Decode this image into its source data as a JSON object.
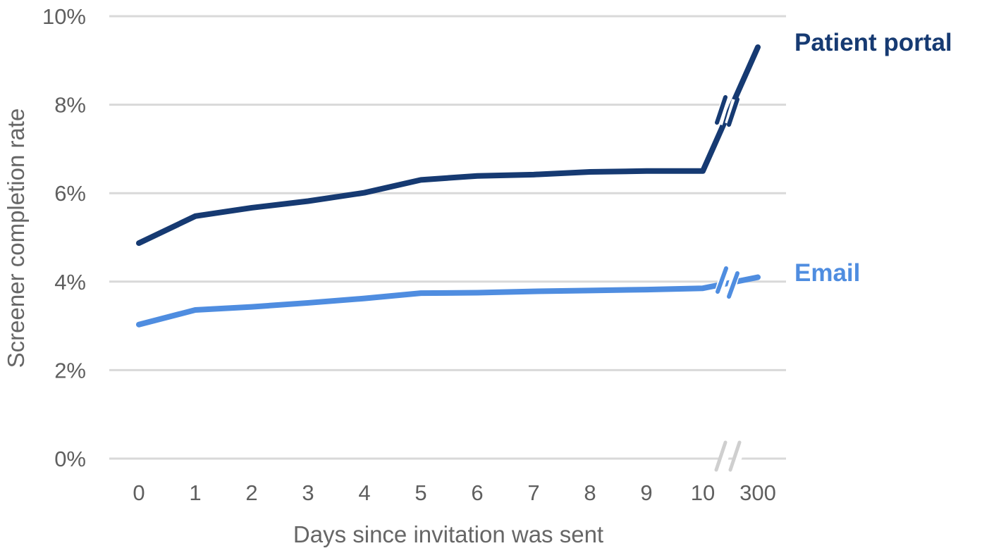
{
  "chart_data": {
    "type": "line",
    "title": "",
    "xlabel": "Days since invitation was sent",
    "ylabel": "Screener completion rate",
    "categories": [
      "0",
      "1",
      "2",
      "3",
      "4",
      "5",
      "6",
      "7",
      "8",
      "9",
      "10",
      "300"
    ],
    "y_ticks": [
      "0%",
      "2%",
      "4%",
      "6%",
      "8%",
      "10%"
    ],
    "ylim": [
      0,
      10
    ],
    "grid": true,
    "axis_break": {
      "between_categories": [
        "10",
        "300"
      ]
    },
    "series": [
      {
        "name": "Patient portal",
        "color": "#163a72",
        "values": [
          4.87,
          5.48,
          5.67,
          5.82,
          6.01,
          6.3,
          6.39,
          6.42,
          6.48,
          6.5,
          6.5,
          9.3
        ]
      },
      {
        "name": "Email",
        "color": "#4f8de0",
        "values": [
          3.03,
          3.36,
          3.43,
          3.52,
          3.62,
          3.74,
          3.75,
          3.78,
          3.8,
          3.82,
          3.85,
          4.1
        ]
      }
    ],
    "gridline_color": "#d9d9d9",
    "break_mark_color": "#cfcfcf"
  }
}
